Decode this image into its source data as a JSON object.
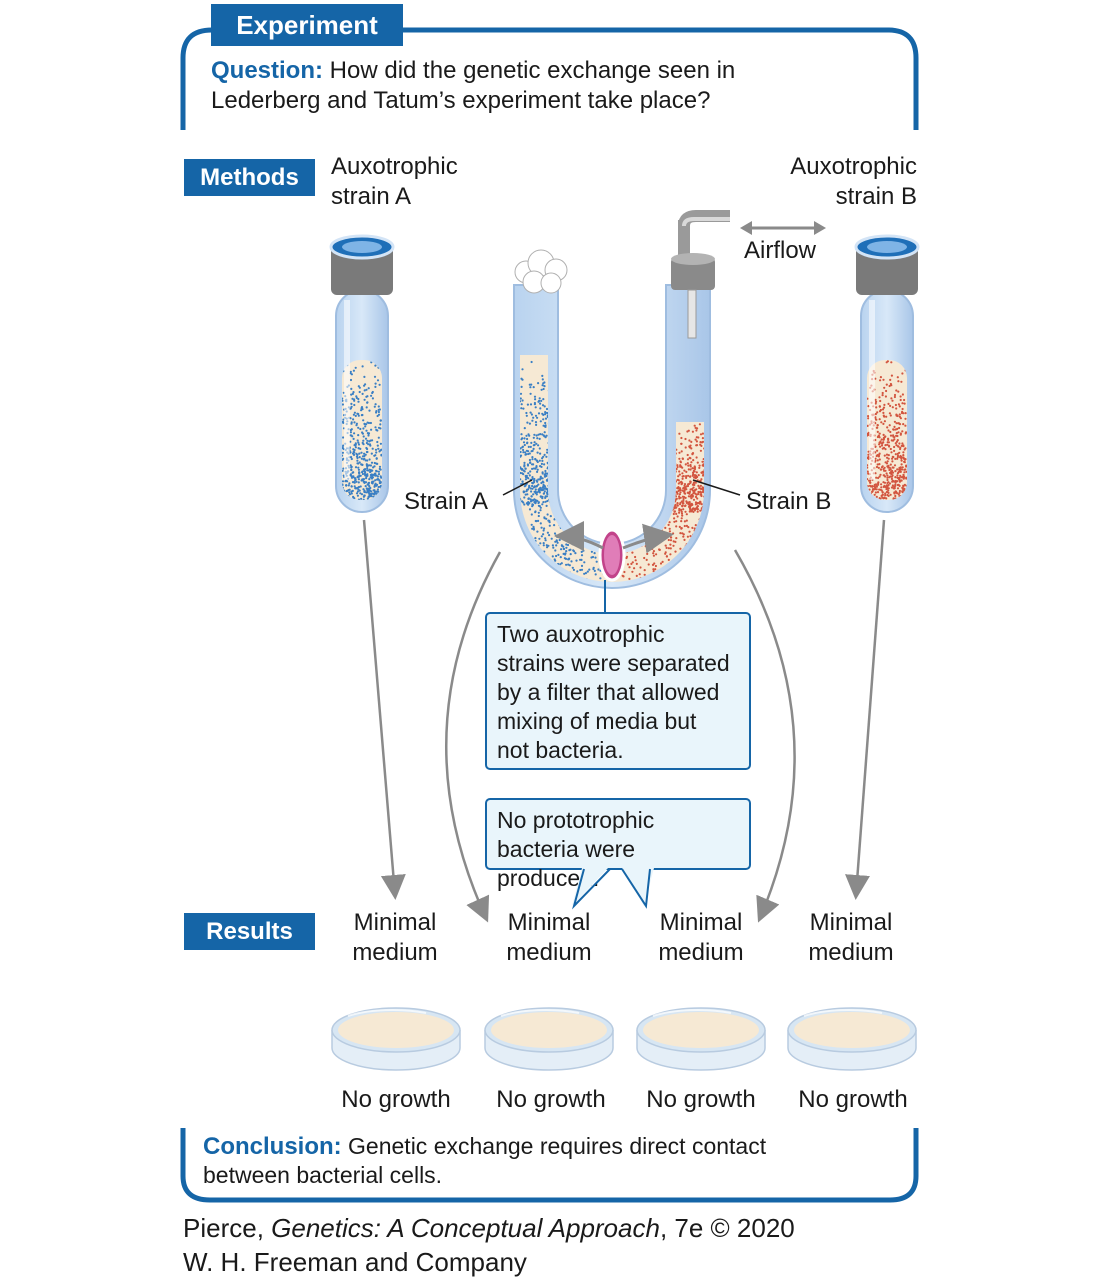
{
  "experiment_tag": "Experiment",
  "question": {
    "label": "Question:",
    "text_line1": "How did the genetic exchange seen in",
    "text_line2": "Lederberg and Tatum’s experiment take place?"
  },
  "methods_tag": "Methods",
  "strain_a_title": [
    "Auxotrophic",
    "strain A"
  ],
  "strain_b_title": [
    "Auxotrophic",
    "strain B"
  ],
  "airflow_label": "Airflow",
  "strain_a_label": "Strain A",
  "strain_b_label": "Strain B",
  "filter_callout": [
    "Two auxotrophic",
    "strains were separated",
    "by a filter that allowed",
    "mixing of media but",
    "not bacteria."
  ],
  "result_callout": [
    "No prototrophic",
    "bacteria were produced."
  ],
  "results_tag": "Results",
  "plates": [
    {
      "medium": [
        "Minimal",
        "medium"
      ],
      "outcome": "No growth"
    },
    {
      "medium": [
        "Minimal",
        "medium"
      ],
      "outcome": "No growth"
    },
    {
      "medium": [
        "Minimal",
        "medium"
      ],
      "outcome": "No growth"
    },
    {
      "medium": [
        "Minimal",
        "medium"
      ],
      "outcome": "No growth"
    }
  ],
  "conclusion": {
    "label": "Conclusion:",
    "text_line1": "Genetic exchange requires direct contact",
    "text_line2": "between bacterial cells."
  },
  "credit": {
    "author": "Pierce, ",
    "book": "Genetics: A Conceptual Approach",
    "edition": ", 7e © 2020",
    "publisher": "W. H. Freeman and Company"
  },
  "colors": {
    "brand_blue": "#1565a7",
    "strain_a_dots": "#3a7fc4",
    "strain_b_dots": "#d2553f",
    "medium": "#f6e9d4",
    "callout_fill": "#e9f5fb"
  }
}
